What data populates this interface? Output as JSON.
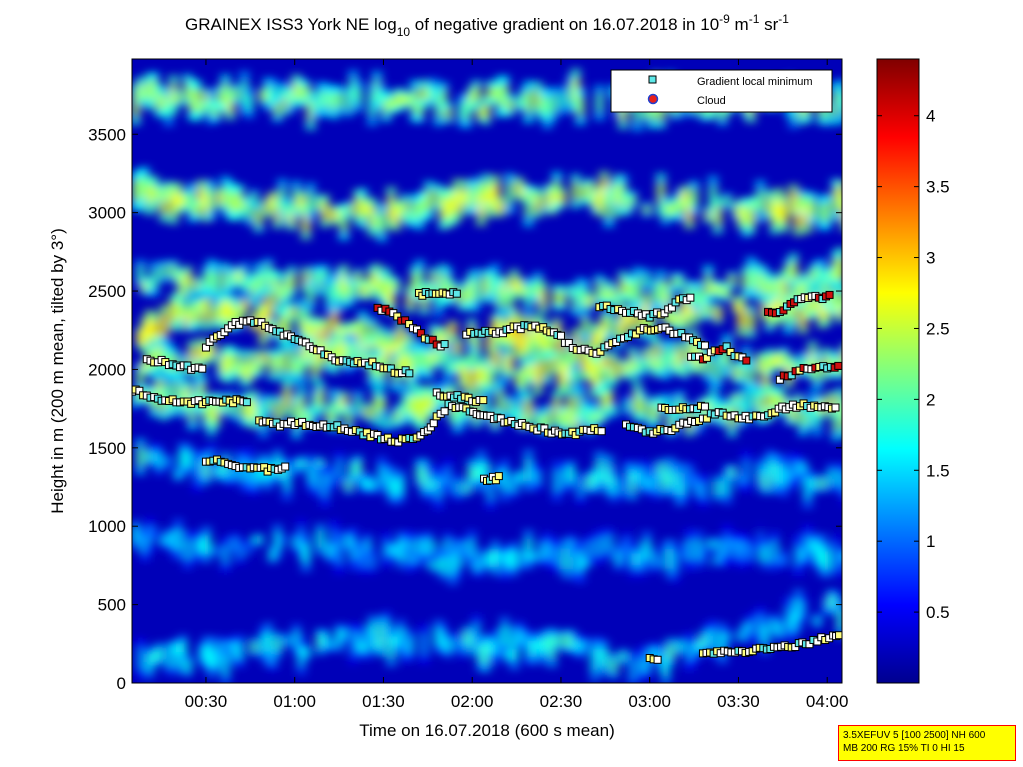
{
  "chart_data": {
    "type": "heatmap",
    "title": {
      "main": "GRAINEX ISS3 York NE log",
      "sub1": "10",
      "mid": " of negative gradient on 16.07.2018 in 10",
      "sup1": "-9",
      "m": " m",
      "sup2": "-1",
      "sr": " sr",
      "sup3": "-1"
    },
    "xlabel": "Time on 16.07.2018 (600 s mean)",
    "ylabel": "Height in m (200 m mean, tilted by 3°)",
    "x_ticks": [
      "00:30",
      "01:00",
      "01:30",
      "02:00",
      "02:30",
      "03:00",
      "03:30",
      "04:00"
    ],
    "y_ticks": [
      "0",
      "500",
      "1000",
      "1500",
      "2000",
      "2500",
      "3000",
      "3500"
    ],
    "y_range": [
      0,
      3980
    ],
    "x_range_minutes": [
      5,
      245
    ],
    "colorbar": {
      "range": [
        0,
        4.4
      ],
      "ticks": [
        "0.5",
        "1",
        "1.5",
        "2",
        "2.5",
        "3",
        "3.5",
        "4"
      ],
      "colormap": "jet"
    },
    "legend": {
      "position": "top-right",
      "entries": [
        {
          "label": "Gradient local minimum",
          "color": "#5ee8e8",
          "marker": "square"
        },
        {
          "label": "Cloud",
          "color": "#e8201b",
          "edge": "#2040d0",
          "marker": "circle"
        }
      ]
    },
    "layers": [
      {
        "pts": [
          [
            5,
            2220
          ],
          [
            20,
            2320
          ],
          [
            35,
            2380
          ],
          [
            50,
            2330
          ],
          [
            65,
            2290
          ],
          [
            80,
            2200
          ],
          [
            95,
            2130
          ],
          [
            110,
            2180
          ],
          [
            125,
            2230
          ],
          [
            140,
            2200
          ],
          [
            155,
            2220
          ],
          [
            170,
            2280
          ],
          [
            185,
            2370
          ],
          [
            200,
            2380
          ],
          [
            215,
            2340
          ],
          [
            230,
            2390
          ],
          [
            245,
            2430
          ]
        ],
        "val": 2.55
      },
      {
        "pts": [
          [
            5,
            1860
          ],
          [
            15,
            1830
          ],
          [
            30,
            1770
          ],
          [
            45,
            1750
          ],
          [
            60,
            1760
          ],
          [
            75,
            1740
          ],
          [
            90,
            1730
          ],
          [
            105,
            1790
          ],
          [
            120,
            1760
          ],
          [
            135,
            1720
          ],
          [
            150,
            1730
          ],
          [
            165,
            1760
          ],
          [
            180,
            1720
          ],
          [
            195,
            1730
          ],
          [
            210,
            1770
          ],
          [
            225,
            1770
          ],
          [
            245,
            1720
          ]
        ],
        "val": 2.2
      },
      {
        "pts": [
          [
            5,
            2000
          ],
          [
            20,
            2080
          ],
          [
            40,
            2020
          ],
          [
            60,
            2060
          ],
          [
            80,
            2070
          ],
          [
            100,
            2020
          ],
          [
            120,
            2010
          ],
          [
            140,
            2000
          ],
          [
            160,
            2010
          ],
          [
            180,
            2080
          ],
          [
            200,
            2040
          ],
          [
            220,
            2010
          ],
          [
            245,
            2020
          ]
        ],
        "val": 2.35
      },
      {
        "pts": [
          [
            5,
            3120
          ],
          [
            40,
            3050
          ],
          [
            80,
            2980
          ],
          [
            110,
            3070
          ],
          [
            140,
            3110
          ],
          [
            180,
            3080
          ],
          [
            210,
            3020
          ],
          [
            245,
            3050
          ]
        ],
        "val": 2.4
      },
      {
        "pts": [
          [
            5,
            2570
          ],
          [
            40,
            2560
          ],
          [
            80,
            2530
          ],
          [
            110,
            2500
          ],
          [
            150,
            2480
          ],
          [
            190,
            2510
          ],
          [
            220,
            2560
          ],
          [
            245,
            2580
          ]
        ],
        "val": 2.25
      },
      {
        "pts": [
          [
            5,
            1400
          ],
          [
            30,
            1380
          ],
          [
            60,
            1340
          ],
          [
            90,
            1300
          ],
          [
            120,
            1290
          ],
          [
            150,
            1300
          ],
          [
            190,
            1290
          ],
          [
            220,
            1320
          ],
          [
            245,
            1300
          ]
        ],
        "val": 1.55
      },
      {
        "pts": [
          [
            5,
            900
          ],
          [
            40,
            880
          ],
          [
            80,
            850
          ],
          [
            120,
            800
          ],
          [
            160,
            820
          ],
          [
            200,
            830
          ],
          [
            245,
            840
          ]
        ],
        "val": 1.3
      },
      {
        "pts": [
          [
            5,
            200
          ],
          [
            30,
            170
          ],
          [
            60,
            220
          ],
          [
            90,
            280
          ],
          [
            120,
            260
          ],
          [
            150,
            210
          ],
          [
            180,
            130
          ],
          [
            200,
            300
          ],
          [
            220,
            380
          ],
          [
            245,
            480
          ]
        ],
        "val": 1.55
      },
      {
        "pts": [
          [
            5,
            3750
          ],
          [
            40,
            3700
          ],
          [
            80,
            3730
          ],
          [
            120,
            3690
          ],
          [
            160,
            3720
          ],
          [
            200,
            3690
          ],
          [
            245,
            3700
          ]
        ],
        "val": 2.15
      }
    ],
    "gradient_minima": [
      {
        "pts": [
          [
            5,
            1870
          ],
          [
            10,
            1830
          ],
          [
            15,
            1810
          ],
          [
            20,
            1800
          ],
          [
            25,
            1790
          ],
          [
            30,
            1790
          ],
          [
            38,
            1800
          ],
          [
            45,
            1790
          ]
        ],
        "cloud": false
      },
      {
        "pts": [
          [
            10,
            2060
          ],
          [
            15,
            2050
          ],
          [
            20,
            2030
          ],
          [
            25,
            2010
          ],
          [
            30,
            2000
          ]
        ],
        "cloud": false
      },
      {
        "pts": [
          [
            30,
            2150
          ],
          [
            35,
            2230
          ],
          [
            40,
            2290
          ],
          [
            45,
            2310
          ],
          [
            50,
            2280
          ],
          [
            55,
            2240
          ],
          [
            60,
            2200
          ],
          [
            65,
            2150
          ],
          [
            70,
            2100
          ],
          [
            75,
            2050
          ],
          [
            80,
            2040
          ],
          [
            85,
            2040
          ],
          [
            90,
            2020
          ],
          [
            95,
            1980
          ],
          [
            100,
            1980
          ]
        ],
        "cloud": false
      },
      {
        "pts": [
          [
            48,
            1660
          ],
          [
            55,
            1650
          ],
          [
            60,
            1660
          ],
          [
            65,
            1650
          ],
          [
            72,
            1640
          ],
          [
            78,
            1620
          ],
          [
            82,
            1600
          ],
          [
            88,
            1570
          ],
          [
            95,
            1540
          ],
          [
            100,
            1560
          ],
          [
            105,
            1610
          ],
          [
            108,
            1700
          ],
          [
            112,
            1770
          ],
          [
            118,
            1740
          ],
          [
            125,
            1700
          ],
          [
            132,
            1670
          ],
          [
            138,
            1640
          ],
          [
            142,
            1620
          ],
          [
            148,
            1600
          ],
          [
            155,
            1590
          ],
          [
            160,
            1610
          ],
          [
            165,
            1620
          ]
        ],
        "cloud": false
      },
      {
        "pts": [
          [
            88,
            2400
          ],
          [
            92,
            2360
          ],
          [
            96,
            2320
          ],
          [
            100,
            2260
          ],
          [
            104,
            2210
          ],
          [
            108,
            2170
          ],
          [
            112,
            2140
          ]
        ],
        "cloud": true
      },
      {
        "pts": [
          [
            102,
            2480
          ],
          [
            110,
            2480
          ],
          [
            116,
            2490
          ]
        ],
        "cloud": false
      },
      {
        "pts": [
          [
            108,
            1840
          ],
          [
            115,
            1830
          ],
          [
            120,
            1800
          ],
          [
            125,
            1790
          ]
        ],
        "cloud": false
      },
      {
        "pts": [
          [
            118,
            2220
          ],
          [
            122,
            2240
          ],
          [
            128,
            2230
          ],
          [
            134,
            2260
          ],
          [
            140,
            2280
          ],
          [
            144,
            2270
          ],
          [
            150,
            2200
          ],
          [
            154,
            2140
          ],
          [
            158,
            2120
          ],
          [
            162,
            2110
          ],
          [
            166,
            2150
          ],
          [
            170,
            2190
          ],
          [
            174,
            2230
          ],
          [
            178,
            2250
          ],
          [
            184,
            2260
          ],
          [
            188,
            2240
          ],
          [
            192,
            2220
          ],
          [
            196,
            2180
          ],
          [
            200,
            2150
          ]
        ],
        "cloud": false
      },
      {
        "pts": [
          [
            172,
            1640
          ],
          [
            176,
            1620
          ],
          [
            180,
            1600
          ],
          [
            186,
            1610
          ],
          [
            190,
            1640
          ],
          [
            194,
            1660
          ],
          [
            198,
            1690
          ],
          [
            202,
            1720
          ],
          [
            206,
            1720
          ],
          [
            210,
            1690
          ],
          [
            216,
            1700
          ],
          [
            220,
            1720
          ],
          [
            226,
            1760
          ],
          [
            232,
            1770
          ],
          [
            238,
            1770
          ],
          [
            244,
            1760
          ]
        ],
        "cloud": false
      },
      {
        "pts": [
          [
            184,
            1760
          ],
          [
            190,
            1750
          ],
          [
            196,
            1760
          ],
          [
            200,
            1750
          ]
        ],
        "cloud": false
      },
      {
        "pts": [
          [
            163,
            2410
          ],
          [
            168,
            2380
          ],
          [
            172,
            2370
          ],
          [
            176,
            2360
          ],
          [
            180,
            2340
          ],
          [
            185,
            2370
          ],
          [
            190,
            2440
          ],
          [
            195,
            2470
          ]
        ],
        "cloud": false
      },
      {
        "pts": [
          [
            194,
            2080
          ],
          [
            198,
            2060
          ],
          [
            202,
            2120
          ],
          [
            206,
            2140
          ],
          [
            210,
            2080
          ],
          [
            214,
            2030
          ]
        ],
        "cloud": true
      },
      {
        "pts": [
          [
            224,
            1940
          ],
          [
            228,
            1970
          ],
          [
            232,
            2000
          ],
          [
            236,
            2020
          ],
          [
            240,
            2020
          ],
          [
            245,
            2020
          ]
        ],
        "cloud": true
      },
      {
        "pts": [
          [
            180,
            150
          ],
          [
            184,
            160
          ]
        ],
        "cloud": false
      },
      {
        "pts": [
          [
            198,
            200
          ],
          [
            204,
            200
          ],
          [
            210,
            200
          ],
          [
            216,
            210
          ],
          [
            222,
            220
          ],
          [
            228,
            240
          ],
          [
            234,
            260
          ],
          [
            238,
            280
          ],
          [
            242,
            300
          ],
          [
            245,
            320
          ]
        ],
        "cloud": false
      },
      {
        "pts": [
          [
            30,
            1420
          ],
          [
            35,
            1410
          ],
          [
            40,
            1400
          ]
        ],
        "cloud": false
      },
      {
        "pts": [
          [
            40,
            1380
          ],
          [
            45,
            1370
          ],
          [
            52,
            1360
          ],
          [
            58,
            1380
          ]
        ],
        "cloud": false
      },
      {
        "pts": [
          [
            124,
            1290
          ],
          [
            127,
            1300
          ],
          [
            130,
            1310
          ]
        ],
        "cloud": false
      },
      {
        "pts": [
          [
            220,
            2370
          ],
          [
            224,
            2360
          ],
          [
            230,
            2450
          ],
          [
            236,
            2460
          ],
          [
            242,
            2470
          ]
        ],
        "cloud": true
      }
    ]
  },
  "info_box": {
    "line1": "3.5XEFUV 5 [100 2500] NH 600",
    "line2": "MB 200 RG 15% TI 0 HI 15"
  }
}
